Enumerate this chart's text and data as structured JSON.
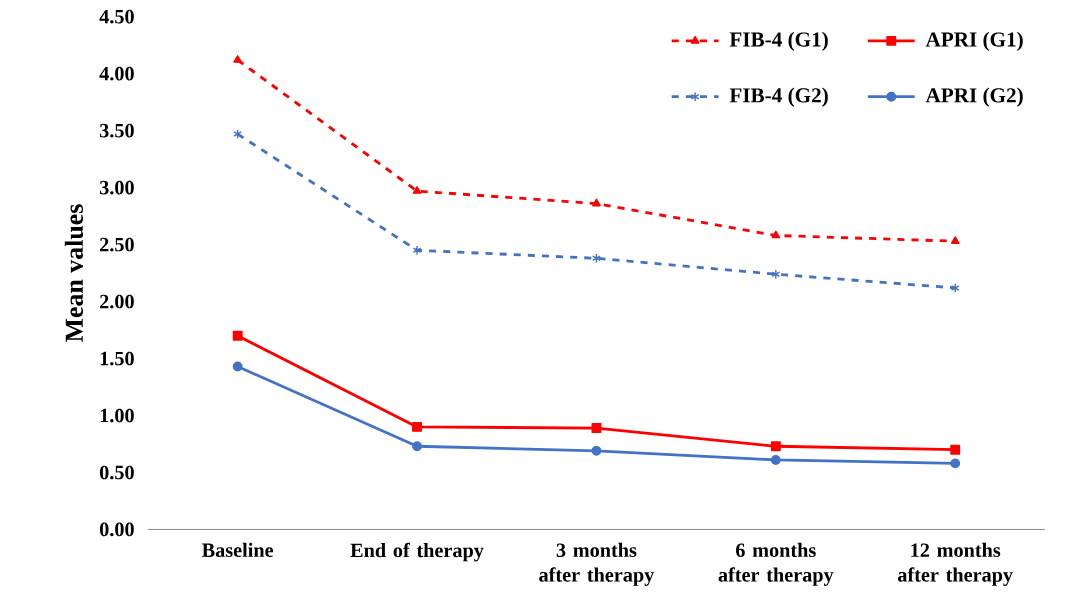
{
  "chart_data": {
    "type": "line",
    "ylabel": "Mean values",
    "categories": [
      "Baseline",
      "End of therapy",
      "3 months after therapy",
      "6 months after therapy",
      "12 months after therapy"
    ],
    "series": [
      {
        "name": "FIB-4 (G1)",
        "color": "#ff0000",
        "marker": "triangle",
        "line_style": "dashed",
        "values": [
          4.12,
          2.97,
          2.86,
          2.58,
          2.53
        ]
      },
      {
        "name": "APRI (G1)",
        "color": "#ff0000",
        "marker": "square",
        "line_style": "solid",
        "values": [
          1.7,
          0.9,
          0.89,
          0.73,
          0.7
        ]
      },
      {
        "name": "FIB-4 (G2)",
        "color": "#4472c4",
        "marker": "cross",
        "line_style": "dashed",
        "values": [
          3.47,
          2.45,
          2.38,
          2.24,
          2.12
        ]
      },
      {
        "name": "APRI (G2)",
        "color": "#4472c4",
        "marker": "circle",
        "line_style": "solid",
        "values": [
          1.43,
          0.73,
          0.69,
          0.61,
          0.58
        ]
      }
    ],
    "ylim": [
      0,
      4.5
    ],
    "yticks": [
      {
        "value": 0,
        "label": "0.00"
      },
      {
        "value": 0.5,
        "label": "0.50"
      },
      {
        "value": 1,
        "label": "1.00"
      },
      {
        "value": 1.5,
        "label": "1.50"
      },
      {
        "value": 2,
        "label": "2.00"
      },
      {
        "value": 2.5,
        "label": "2.50"
      },
      {
        "value": 3,
        "label": "3.00"
      },
      {
        "value": 3.5,
        "label": "3.50"
      },
      {
        "value": 4,
        "label": "4.00"
      },
      {
        "value": 4.5,
        "label": "4.50"
      }
    ],
    "grid": false,
    "legend": "top right"
  }
}
